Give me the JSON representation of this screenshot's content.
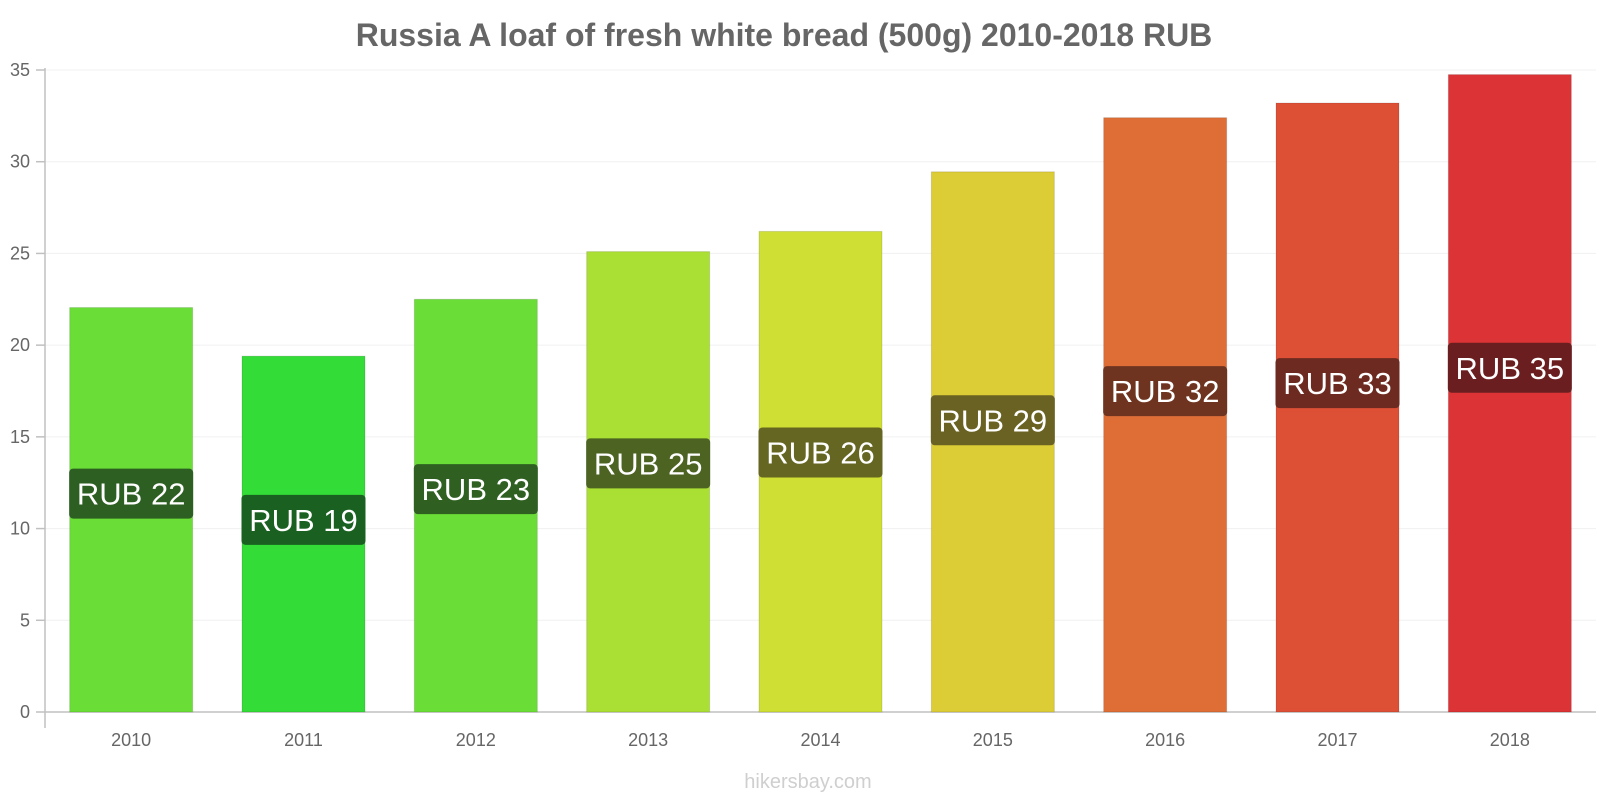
{
  "chart_data": {
    "type": "bar",
    "title": "Russia A loaf of fresh white bread (500g) 2010-2018 RUB",
    "xlabel": "",
    "ylabel": "",
    "ylim": [
      0,
      35
    ],
    "yticks": [
      0,
      5,
      10,
      15,
      20,
      25,
      30,
      35
    ],
    "grid": true,
    "legend": "none",
    "categories": [
      "2010",
      "2011",
      "2012",
      "2013",
      "2014",
      "2015",
      "2016",
      "2017",
      "2018"
    ],
    "values": [
      22.05,
      19.4,
      22.5,
      25.1,
      26.2,
      29.45,
      32.4,
      33.2,
      34.75
    ],
    "data_labels": [
      "RUB 22",
      "RUB 19",
      "RUB 23",
      "RUB 25",
      "RUB 26",
      "RUB 29",
      "RUB 32",
      "RUB 33",
      "RUB 35"
    ],
    "bar_colors": [
      "#6ade36",
      "#33dc36",
      "#6ade36",
      "#aadf33",
      "#d0df33",
      "#dccc36",
      "#de6e36",
      "#de5036",
      "#dc3436"
    ],
    "label_bg_colors": [
      "#2d5f22",
      "#1a6121",
      "#2f6022",
      "#4c6322",
      "#646622",
      "#6a6222",
      "#6e3420",
      "#6d2a20",
      "#6b1e20"
    ]
  },
  "watermark": "hikersbay.com"
}
